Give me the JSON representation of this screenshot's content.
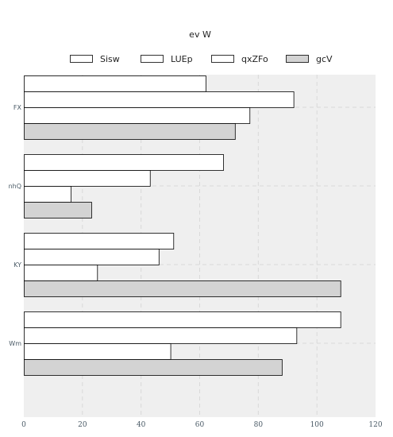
{
  "chart_data": {
    "type": "bar",
    "orientation": "horizontal",
    "title": "ev W",
    "xlabel": "",
    "ylabel": "",
    "categories": [
      "FX",
      "nhQ",
      "KY",
      "Wm"
    ],
    "series": [
      {
        "name": "Sisw",
        "values": [
          62,
          68,
          51,
          108
        ],
        "color": "#ffffff"
      },
      {
        "name": "LUEp",
        "values": [
          92,
          43,
          46,
          93
        ],
        "color": "#ffffff"
      },
      {
        "name": "qxZFo",
        "values": [
          77,
          16,
          25,
          50
        ],
        "color": "#ffffff"
      },
      {
        "name": "gcV",
        "values": [
          72,
          23,
          108,
          88
        ],
        "color": "#d3d3d3"
      }
    ],
    "xlim": [
      0,
      120
    ],
    "xticks": [
      "0",
      "20",
      "40",
      "60",
      "80",
      "100",
      "120"
    ],
    "grid": true,
    "legend_position": "top",
    "plot_background": "#efefef",
    "bar_edge_color": "#000000"
  }
}
